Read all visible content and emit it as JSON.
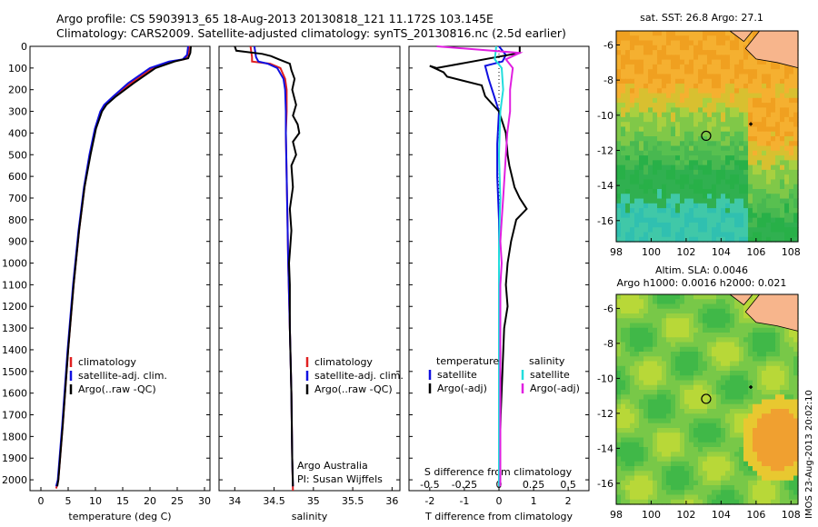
{
  "header": {
    "title_line1": "Argo profile: CS 5903913_65 18-Aug-2013 20130818_121 11.172S 103.145E",
    "title_line2": "Climatology: CARS2009. Satellite-adjusted climatology: synTS_20130816.nc (2.5d earlier)"
  },
  "colors": {
    "climatology": "#e02020",
    "satellite_adj": "#1010e0",
    "argo": "#000000",
    "salinity_sat": "#22dddd",
    "salinity_argo": "#e020e0"
  },
  "chart_data": [
    {
      "id": "temperature",
      "type": "line",
      "xlabel": "temperature (deg C)",
      "ylabel": "",
      "xlim": [
        -2,
        31
      ],
      "ylim": [
        2050,
        0
      ],
      "xticks": [
        0,
        5,
        10,
        15,
        20,
        25,
        30
      ],
      "yticks": [
        0,
        100,
        200,
        300,
        400,
        500,
        600,
        700,
        800,
        900,
        1000,
        1100,
        1200,
        1300,
        1400,
        1500,
        1600,
        1700,
        1800,
        1900,
        2000
      ],
      "legend": [
        "climatology",
        "satellite-adj. clim.",
        "Argo(..raw -QC)"
      ],
      "series": [
        {
          "name": "climatology",
          "color": "#e02020",
          "points": [
            [
              27.2,
              0
            ],
            [
              27.0,
              40
            ],
            [
              26.2,
              60
            ],
            [
              24.0,
              70
            ],
            [
              20.5,
              100
            ],
            [
              16.5,
              170
            ],
            [
              13.5,
              230
            ],
            [
              11.8,
              270
            ],
            [
              11.0,
              300
            ],
            [
              10.0,
              380
            ],
            [
              9.0,
              500
            ],
            [
              8.0,
              650
            ],
            [
              7.0,
              850
            ],
            [
              6.0,
              1100
            ],
            [
              5.0,
              1400
            ],
            [
              4.0,
              1750
            ],
            [
              3.2,
              2000
            ],
            [
              2.8,
              2040
            ]
          ]
        },
        {
          "name": "satellite-adj. clim.",
          "color": "#1010e0",
          "points": [
            [
              27.0,
              0
            ],
            [
              26.8,
              40
            ],
            [
              26.0,
              60
            ],
            [
              23.5,
              70
            ],
            [
              20.0,
              100
            ],
            [
              16.0,
              170
            ],
            [
              13.3,
              230
            ],
            [
              11.6,
              270
            ],
            [
              10.9,
              300
            ],
            [
              9.9,
              380
            ],
            [
              8.9,
              500
            ],
            [
              7.9,
              650
            ],
            [
              6.9,
              850
            ],
            [
              5.9,
              1100
            ],
            [
              4.9,
              1400
            ],
            [
              3.9,
              1750
            ],
            [
              3.1,
              2000
            ],
            [
              2.8,
              2030
            ]
          ]
        },
        {
          "name": "Argo(..raw -QC)",
          "color": "#000000",
          "points": [
            [
              27.5,
              0
            ],
            [
              27.4,
              30
            ],
            [
              27.0,
              55
            ],
            [
              24.5,
              70
            ],
            [
              21.0,
              100
            ],
            [
              17.0,
              170
            ],
            [
              13.8,
              230
            ],
            [
              12.0,
              270
            ],
            [
              11.2,
              300
            ],
            [
              10.1,
              380
            ],
            [
              9.1,
              500
            ],
            [
              8.0,
              650
            ],
            [
              7.0,
              850
            ],
            [
              6.0,
              1100
            ],
            [
              5.0,
              1400
            ],
            [
              4.0,
              1750
            ],
            [
              3.2,
              2000
            ],
            [
              3.0,
              2030
            ]
          ]
        }
      ]
    },
    {
      "id": "salinity",
      "type": "line",
      "xlabel": "salinity",
      "ylabel": "",
      "xlim": [
        33.8,
        36.1
      ],
      "ylim": [
        2050,
        0
      ],
      "xticks": [
        34,
        34.5,
        35,
        35.5,
        36
      ],
      "legend": [
        "climatology",
        "satellite-adj. clim.",
        "Argo(..raw -QC)"
      ],
      "annotation_line1": "Argo Australia",
      "annotation_line2": "PI: Susan Wijffels",
      "series": [
        {
          "name": "climatology",
          "color": "#e02020",
          "points": [
            [
              34.2,
              0
            ],
            [
              34.22,
              50
            ],
            [
              34.22,
              70
            ],
            [
              34.45,
              80
            ],
            [
              34.58,
              100
            ],
            [
              34.64,
              150
            ],
            [
              34.66,
              200
            ],
            [
              34.66,
              300
            ],
            [
              34.65,
              400
            ],
            [
              34.66,
              600
            ],
            [
              34.67,
              800
            ],
            [
              34.68,
              1000
            ],
            [
              34.7,
              1300
            ],
            [
              34.72,
              1600
            ],
            [
              34.73,
              1900
            ],
            [
              34.74,
              2050
            ]
          ]
        },
        {
          "name": "satellite-adj. clim.",
          "color": "#1010e0",
          "points": [
            [
              34.25,
              0
            ],
            [
              34.27,
              50
            ],
            [
              34.3,
              70
            ],
            [
              34.42,
              80
            ],
            [
              34.54,
              100
            ],
            [
              34.62,
              150
            ],
            [
              34.64,
              200
            ],
            [
              34.65,
              300
            ],
            [
              34.65,
              400
            ],
            [
              34.66,
              600
            ],
            [
              34.67,
              800
            ],
            [
              34.68,
              1000
            ],
            [
              34.7,
              1300
            ],
            [
              34.72,
              1600
            ],
            [
              34.73,
              1900
            ],
            [
              34.74,
              2030
            ]
          ]
        },
        {
          "name": "Argo(..raw -QC)",
          "color": "#000000",
          "points": [
            [
              34.0,
              0
            ],
            [
              34.02,
              20
            ],
            [
              34.35,
              35
            ],
            [
              34.46,
              45
            ],
            [
              34.56,
              60
            ],
            [
              34.7,
              80
            ],
            [
              34.72,
              110
            ],
            [
              34.76,
              150
            ],
            [
              34.73,
              200
            ],
            [
              34.78,
              270
            ],
            [
              34.74,
              320
            ],
            [
              34.8,
              360
            ],
            [
              34.82,
              400
            ],
            [
              34.74,
              440
            ],
            [
              34.78,
              500
            ],
            [
              34.72,
              550
            ],
            [
              34.74,
              650
            ],
            [
              34.7,
              750
            ],
            [
              34.72,
              850
            ],
            [
              34.7,
              950
            ],
            [
              34.69,
              1000
            ],
            [
              34.7,
              1100
            ],
            [
              34.7,
              1300
            ],
            [
              34.72,
              1600
            ],
            [
              34.73,
              1900
            ],
            [
              34.74,
              2030
            ]
          ]
        }
      ]
    },
    {
      "id": "difference",
      "type": "line",
      "xlabel": "T difference from climatology",
      "x2label": "S difference from climatology",
      "ylabel": "",
      "xlim": [
        -2.6,
        2.6
      ],
      "x2lim": [
        -0.65,
        0.65
      ],
      "ylim": [
        2050,
        0
      ],
      "xticks": [
        -2,
        -1,
        0,
        1,
        2
      ],
      "x2ticks": [
        -0.5,
        -0.25,
        0,
        0.25,
        0.5
      ],
      "legend_temperature_title": "temperature",
      "legend_salinity_title": "salinity",
      "legend_temperature": [
        "satellite",
        "Argo(-adj)"
      ],
      "legend_salinity": [
        "satellite",
        "Argo(-adj)"
      ],
      "series": [
        {
          "name": "satellite",
          "axis": "T",
          "color": "#1010e0",
          "points": [
            [
              0,
              0
            ],
            [
              0.2,
              40
            ],
            [
              0.1,
              70
            ],
            [
              -0.4,
              90
            ],
            [
              -0.3,
              150
            ],
            [
              -0.1,
              250
            ],
            [
              0,
              300
            ],
            [
              -0.05,
              450
            ],
            [
              -0.05,
              600
            ],
            [
              0,
              800
            ],
            [
              0,
              1200
            ],
            [
              0,
              1600
            ],
            [
              0,
              2030
            ]
          ]
        },
        {
          "name": "Argo(-adj)",
          "axis": "T",
          "color": "#000000",
          "points": [
            [
              0.6,
              0
            ],
            [
              0.6,
              30
            ],
            [
              -1.8,
              100
            ],
            [
              -2.0,
              90
            ],
            [
              -1.6,
              120
            ],
            [
              -1.5,
              140
            ],
            [
              -0.5,
              180
            ],
            [
              -0.4,
              230
            ],
            [
              0.0,
              300
            ],
            [
              0.2,
              400
            ],
            [
              0.25,
              500
            ],
            [
              0.3,
              550
            ],
            [
              0.45,
              650
            ],
            [
              0.6,
              700
            ],
            [
              0.8,
              750
            ],
            [
              0.5,
              800
            ],
            [
              0.35,
              900
            ],
            [
              0.25,
              1000
            ],
            [
              0.2,
              1100
            ],
            [
              0.25,
              1200
            ],
            [
              0.15,
              1300
            ],
            [
              0.1,
              1500
            ],
            [
              0.05,
              1700
            ],
            [
              0,
              2030
            ]
          ]
        },
        {
          "name": "satellite",
          "axis": "S",
          "color": "#22dddd",
          "points": [
            [
              -0.02,
              0
            ],
            [
              -0.03,
              60
            ],
            [
              0.02,
              100
            ],
            [
              0.03,
              200
            ],
            [
              0.01,
              300
            ],
            [
              0,
              500
            ],
            [
              0.01,
              700
            ],
            [
              0,
              900
            ],
            [
              0,
              1200
            ],
            [
              0,
              1600
            ],
            [
              0,
              2030
            ]
          ]
        },
        {
          "name": "Argo(-adj)",
          "axis": "S",
          "color": "#e020e0",
          "points": [
            [
              -0.45,
              0
            ],
            [
              0.15,
              30
            ],
            [
              0.05,
              60
            ],
            [
              0.1,
              100
            ],
            [
              0.09,
              150
            ],
            [
              0.08,
              200
            ],
            [
              0.08,
              300
            ],
            [
              0.06,
              400
            ],
            [
              0.05,
              500
            ],
            [
              0.04,
              600
            ],
            [
              0.03,
              700
            ],
            [
              0.02,
              800
            ],
            [
              0.01,
              900
            ],
            [
              0.02,
              1000
            ],
            [
              0.01,
              1100
            ],
            [
              0.01,
              1300
            ],
            [
              0.01,
              1600
            ],
            [
              0.01,
              2030
            ]
          ]
        }
      ]
    },
    {
      "id": "map-sst",
      "type": "heatmap",
      "title": "sat. SST: 26.8  Argo: 27.1",
      "xlim": [
        98,
        108.4
      ],
      "ylim": [
        -17.2,
        -5.2
      ],
      "xticks": [
        98,
        100,
        102,
        104,
        106,
        108
      ],
      "yticks": [
        -6,
        -8,
        -10,
        -12,
        -14,
        -16
      ],
      "profile_location": [
        103.145,
        -11.172
      ],
      "marker_location": [
        105.7,
        -10.5
      ]
    },
    {
      "id": "map-sla",
      "type": "heatmap",
      "title_line1": "Altim. SLA: 0.0046",
      "title_line2": "Argo h1000: 0.0016 h2000: 0.021",
      "xlim": [
        98,
        108.4
      ],
      "ylim": [
        -17.2,
        -5.2
      ],
      "xticks": [
        98,
        100,
        102,
        104,
        106,
        108
      ],
      "yticks": [
        -6,
        -8,
        -10,
        -12,
        -14,
        -16
      ],
      "profile_location": [
        103.145,
        -11.172
      ],
      "marker_location": [
        105.7,
        -10.5
      ]
    }
  ],
  "side_label": "IMOS 23-Aug-2013 20:02:10"
}
